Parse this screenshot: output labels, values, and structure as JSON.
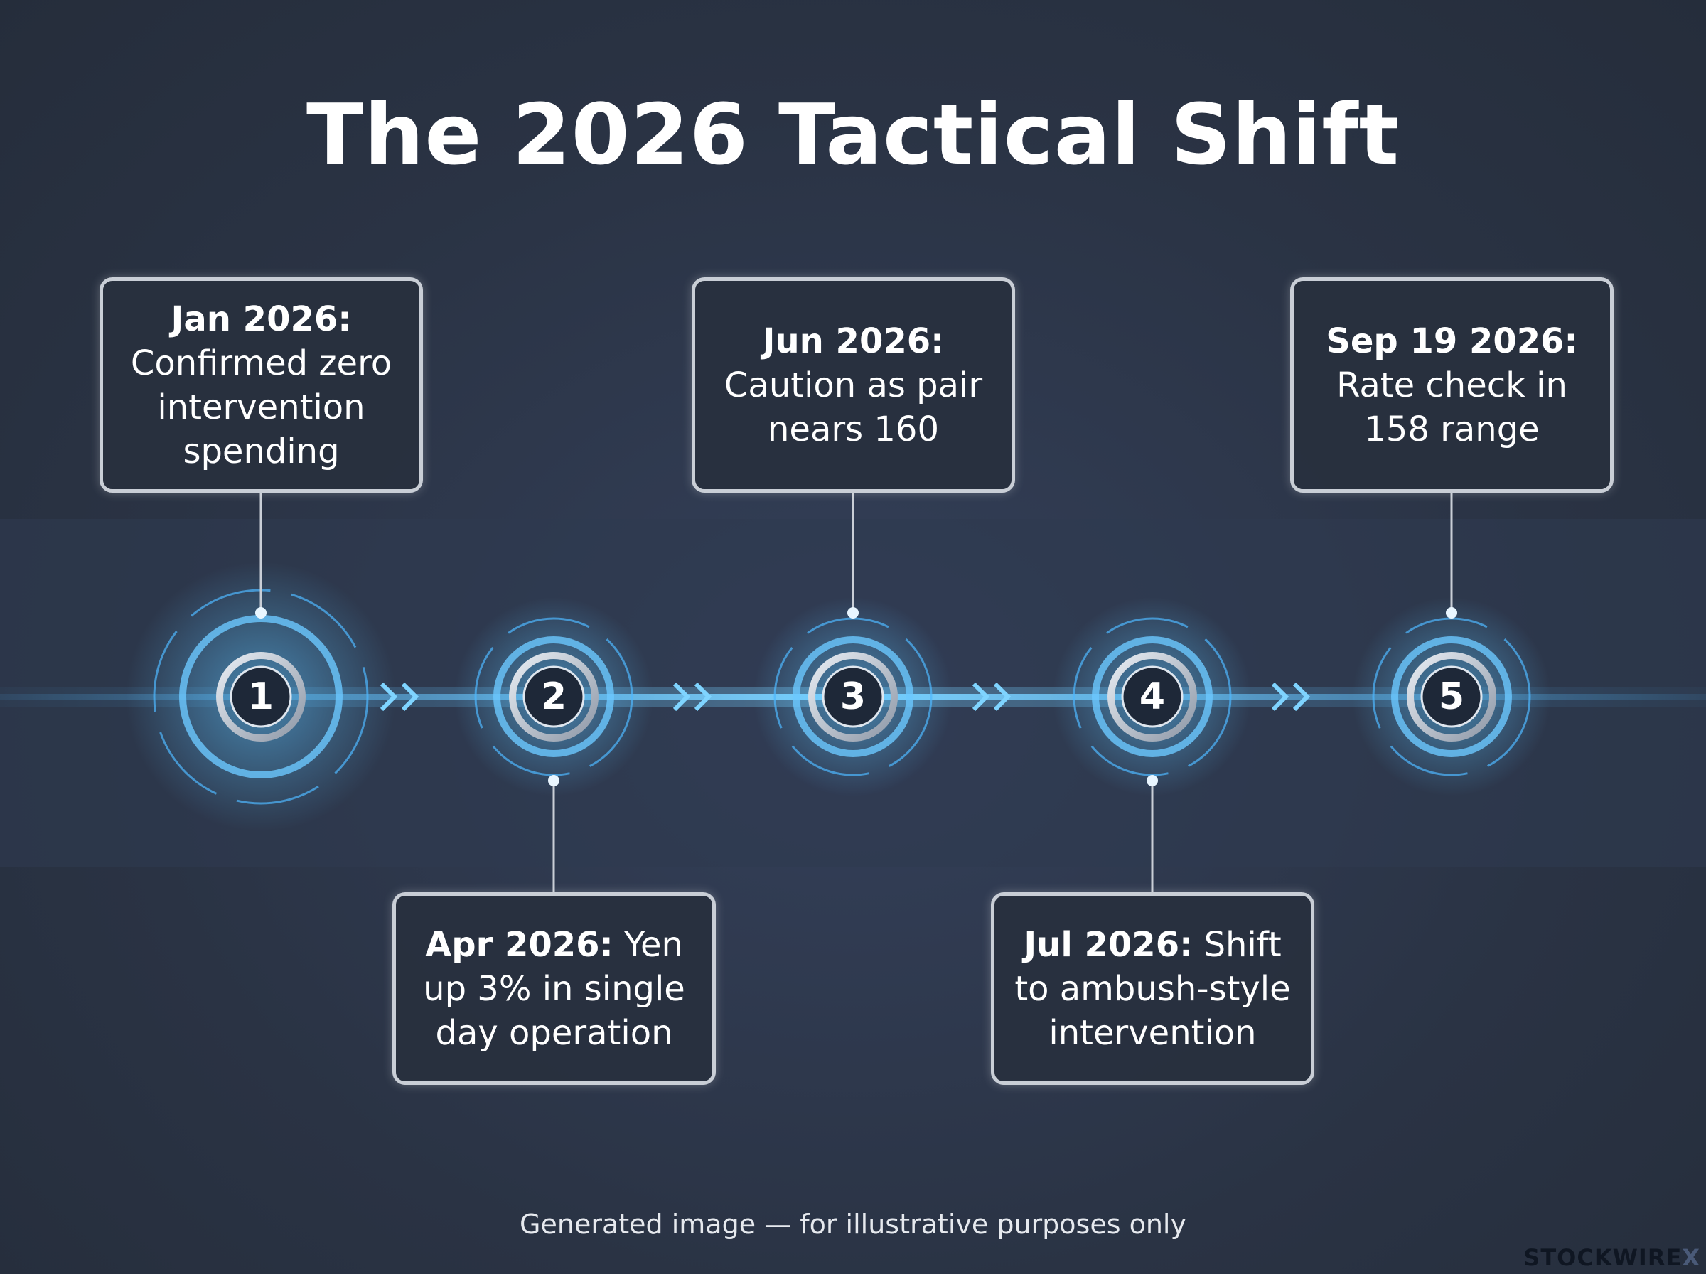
{
  "title": "The 2026 Tactical Shift",
  "events": [
    {
      "number": "1",
      "date": "Jan 2026:",
      "text": "Confirmed zero intervention spending"
    },
    {
      "number": "2",
      "date": "Apr 2026:",
      "text": "Yen up 3% in single day operation"
    },
    {
      "number": "3",
      "date": "Jun 2026:",
      "text": "Caution as pair nears 160"
    },
    {
      "number": "4",
      "date": "Jul 2026:",
      "text": "Shift to ambush-style intervention"
    },
    {
      "number": "5",
      "date": "Sep 19 2026:",
      "text": "Rate check in 158 range"
    }
  ],
  "footer": "Generated image — for illustrative purposes only",
  "watermark": {
    "brand": "STOCKWIRE",
    "mark": "X"
  }
}
